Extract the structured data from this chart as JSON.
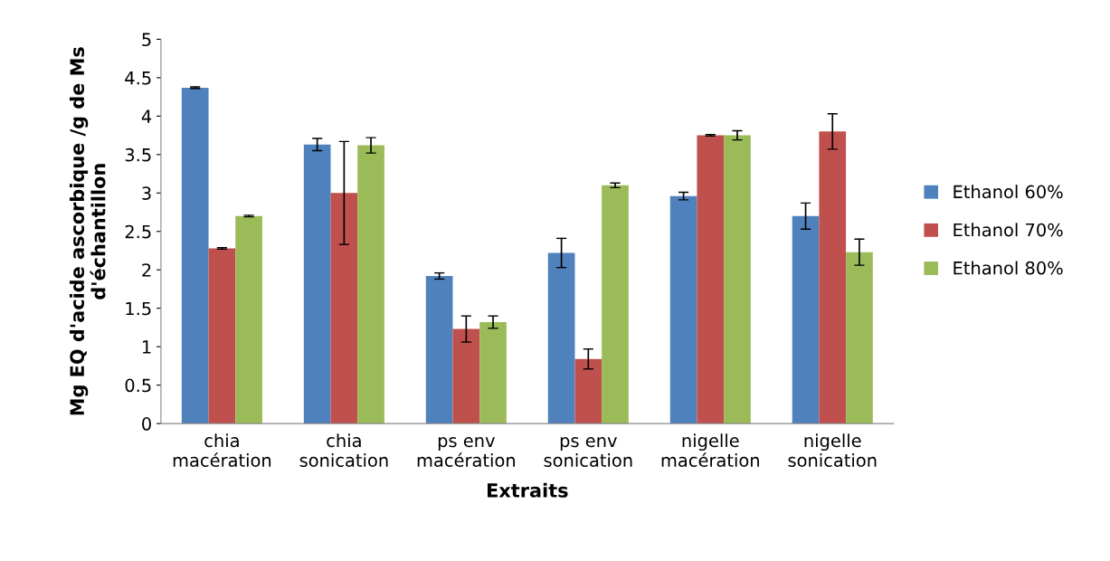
{
  "chart_data": {
    "type": "bar",
    "xlabel": "Extraits",
    "ylabel": "Mg EQ d'acide ascorbique /g de Ms\nd'échantillon",
    "categories": [
      "chia\nmacération",
      "chia\nsonication",
      "ps env\nmacération",
      "ps env\nsonication",
      "nigelle\nmacération",
      "nigelle\nsonication"
    ],
    "series": [
      {
        "name": "Ethanol 60%",
        "color": "#4f81bd",
        "values": [
          4.37,
          3.63,
          1.92,
          2.22,
          2.96,
          2.7
        ],
        "errors": [
          0.01,
          0.08,
          0.04,
          0.19,
          0.05,
          0.17
        ]
      },
      {
        "name": "Ethanol 70%",
        "color": "#c0504d",
        "values": [
          2.28,
          3.0,
          1.23,
          0.84,
          3.75,
          3.8
        ],
        "errors": [
          0.01,
          0.67,
          0.17,
          0.13,
          0.01,
          0.23
        ]
      },
      {
        "name": "Ethanol 80%",
        "color": "#9bbb59",
        "values": [
          2.7,
          3.62,
          1.32,
          3.1,
          3.75,
          2.23
        ],
        "errors": [
          0.01,
          0.1,
          0.08,
          0.03,
          0.06,
          0.17
        ]
      }
    ],
    "ylim": [
      0,
      5
    ],
    "yticks": [
      0,
      0.5,
      1,
      1.5,
      2,
      2.5,
      3,
      3.5,
      4,
      4.5,
      5
    ],
    "grid": false,
    "legend": "right"
  }
}
